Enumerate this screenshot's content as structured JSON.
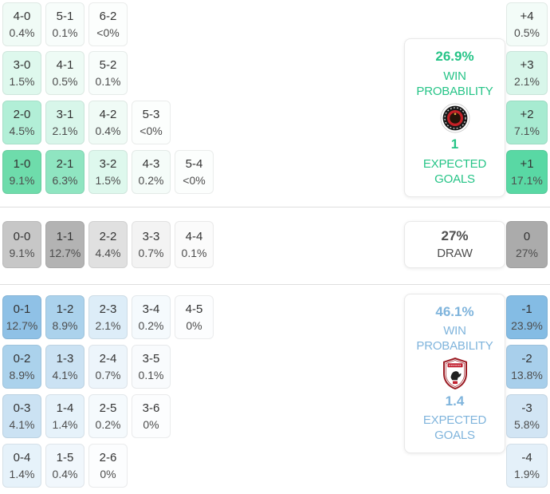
{
  "colors": {
    "home_accent": "#26c487",
    "away_accent": "#7fb4dc",
    "draw_text": "#4f4f4f",
    "score_text": "#333333",
    "pct_text": "#4d4d4d",
    "home_strong_cell": "#59d8a4",
    "away_strong_cell": "#84bce4",
    "draw_strong_cell": "#ababab"
  },
  "panels": {
    "home": {
      "probability": "26.9%",
      "win_label_line1": "WIN",
      "win_label_line2": "PROBABILITY",
      "expected_goals": "1",
      "goals_label_line1": "EXPECTED",
      "goals_label_line2": "GOALS"
    },
    "draw": {
      "probability": "27%",
      "label": "DRAW"
    },
    "away": {
      "probability": "46.1%",
      "win_label_line1": "WIN",
      "win_label_line2": "PROBABILITY",
      "expected_goals": "1.4",
      "goals_label_line1": "EXPECTED",
      "goals_label_line2": "GOALS"
    }
  },
  "matrix": {
    "sections": [
      {
        "id": "home",
        "rows": [
          {
            "cells": [
              {
                "score": "4-0",
                "pct": "0.4%",
                "bg": "#f0fbf6"
              },
              {
                "score": "5-1",
                "pct": "0.1%",
                "bg": "#f8fdfb"
              },
              {
                "score": "6-2",
                "pct": "<0%",
                "bg": "#fcfefd"
              }
            ]
          },
          {
            "cells": [
              {
                "score": "3-0",
                "pct": "1.5%",
                "bg": "#def8ed"
              },
              {
                "score": "4-1",
                "pct": "0.5%",
                "bg": "#eefbf5"
              },
              {
                "score": "5-2",
                "pct": "0.1%",
                "bg": "#f8fdfb"
              }
            ]
          },
          {
            "cells": [
              {
                "score": "2-0",
                "pct": "4.5%",
                "bg": "#b2efd7"
              },
              {
                "score": "3-1",
                "pct": "2.1%",
                "bg": "#d8f6ea"
              },
              {
                "score": "4-2",
                "pct": "0.4%",
                "bg": "#f0fbf6"
              },
              {
                "score": "5-3",
                "pct": "<0%",
                "bg": "#fcfefd"
              }
            ]
          },
          {
            "cells": [
              {
                "score": "1-0",
                "pct": "9.1%",
                "bg": "#6edcab"
              },
              {
                "score": "2-1",
                "pct": "6.3%",
                "bg": "#8fe5c1"
              },
              {
                "score": "3-2",
                "pct": "1.5%",
                "bg": "#def8ed"
              },
              {
                "score": "4-3",
                "pct": "0.2%",
                "bg": "#f5fcf9"
              },
              {
                "score": "5-4",
                "pct": "<0%",
                "bg": "#fcfefd"
              }
            ]
          }
        ]
      },
      {
        "id": "draw",
        "rows": [
          {
            "cells": [
              {
                "score": "0-0",
                "pct": "9.1%",
                "bg": "#c7c7c7"
              },
              {
                "score": "1-1",
                "pct": "12.7%",
                "bg": "#b3b3b3"
              },
              {
                "score": "2-2",
                "pct": "4.4%",
                "bg": "#e0e0e0"
              },
              {
                "score": "3-3",
                "pct": "0.7%",
                "bg": "#f3f3f3"
              },
              {
                "score": "4-4",
                "pct": "0.1%",
                "bg": "#fbfbfb"
              }
            ]
          }
        ]
      },
      {
        "id": "away",
        "rows": [
          {
            "cells": [
              {
                "score": "0-1",
                "pct": "12.7%",
                "bg": "#8fc1e6"
              },
              {
                "score": "1-2",
                "pct": "8.9%",
                "bg": "#abd2ec"
              },
              {
                "score": "2-3",
                "pct": "2.1%",
                "bg": "#ddedf8"
              },
              {
                "score": "3-4",
                "pct": "0.2%",
                "bg": "#f5fafd"
              },
              {
                "score": "4-5",
                "pct": "0%",
                "bg": "#fcfdfe"
              }
            ]
          },
          {
            "cells": [
              {
                "score": "0-2",
                "pct": "8.9%",
                "bg": "#abd2ec"
              },
              {
                "score": "1-3",
                "pct": "4.1%",
                "bg": "#cbe2f3"
              },
              {
                "score": "2-4",
                "pct": "0.7%",
                "bg": "#edf5fb"
              },
              {
                "score": "3-5",
                "pct": "0.1%",
                "bg": "#f9fbfd"
              }
            ]
          },
          {
            "cells": [
              {
                "score": "0-3",
                "pct": "4.1%",
                "bg": "#cbe2f3"
              },
              {
                "score": "1-4",
                "pct": "1.4%",
                "bg": "#e6f2fa"
              },
              {
                "score": "2-5",
                "pct": "0.2%",
                "bg": "#f5fafd"
              },
              {
                "score": "3-6",
                "pct": "0%",
                "bg": "#fcfdfe"
              }
            ]
          },
          {
            "cells": [
              {
                "score": "0-4",
                "pct": "1.4%",
                "bg": "#e6f2fa"
              },
              {
                "score": "1-5",
                "pct": "0.4%",
                "bg": "#f1f7fc"
              },
              {
                "score": "2-6",
                "pct": "0%",
                "bg": "#fcfdfe"
              }
            ]
          }
        ]
      }
    ]
  },
  "diff_column": {
    "cells": [
      {
        "label": "+4",
        "pct": "0.5%",
        "bg": "#f3fcf8"
      },
      {
        "label": "+3",
        "pct": "2.1%",
        "bg": "#d8f6ea"
      },
      {
        "label": "+2",
        "pct": "7.1%",
        "bg": "#a7ebd1"
      },
      {
        "label": "+1",
        "pct": "17.1%",
        "bg": "#59d8a4"
      },
      {
        "label": "0",
        "pct": "27%",
        "bg": "#ababab"
      },
      {
        "label": "-1",
        "pct": "23.9%",
        "bg": "#84bce4"
      },
      {
        "label": "-2",
        "pct": "13.8%",
        "bg": "#a8cfeb"
      },
      {
        "label": "-3",
        "pct": "5.8%",
        "bg": "#d2e5f4"
      },
      {
        "label": "-4",
        "pct": "1.9%",
        "bg": "#e4f0f9"
      }
    ]
  },
  "chart_data": {
    "type": "heatmap",
    "title": "Correct score probability matrix",
    "home": {
      "win_probability_pct": 26.9,
      "expected_goals": 1,
      "scores": {
        "4-0": 0.4,
        "5-1": 0.1,
        "6-2": "<0",
        "3-0": 1.5,
        "4-1": 0.5,
        "5-2": 0.1,
        "2-0": 4.5,
        "3-1": 2.1,
        "4-2": 0.4,
        "5-3": "<0",
        "1-0": 9.1,
        "2-1": 6.3,
        "3-2": 1.5,
        "4-3": 0.2,
        "5-4": "<0"
      }
    },
    "draw": {
      "probability_pct": 27,
      "scores": {
        "0-0": 9.1,
        "1-1": 12.7,
        "2-2": 4.4,
        "3-3": 0.7,
        "4-4": 0.1
      }
    },
    "away": {
      "win_probability_pct": 46.1,
      "expected_goals": 1.4,
      "scores": {
        "0-1": 12.7,
        "1-2": 8.9,
        "2-3": 2.1,
        "3-4": 0.2,
        "4-5": 0,
        "0-2": 8.9,
        "1-3": 4.1,
        "2-4": 0.7,
        "3-5": 0.1,
        "0-3": 4.1,
        "1-4": 1.4,
        "2-5": 0.2,
        "3-6": 0,
        "0-4": 1.4,
        "1-5": 0.4,
        "2-6": 0
      }
    },
    "goal_difference_pct": {
      "+4": 0.5,
      "+3": 2.1,
      "+2": 7.1,
      "+1": 17.1,
      "0": 27,
      "-1": 23.9,
      "-2": 13.8,
      "-3": 5.8,
      "-4": 1.9
    }
  }
}
